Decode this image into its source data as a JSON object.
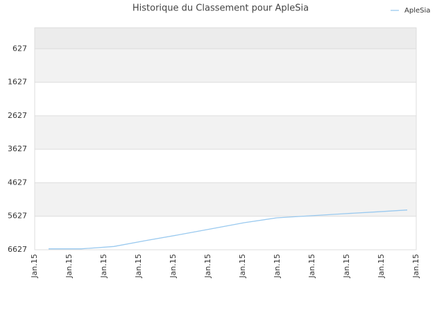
{
  "chart_data": {
    "type": "line",
    "title": "Historique du Classement pour ApleSia",
    "categories": [
      "Jan.15",
      "Jan.15",
      "Jan.15",
      "Jan.15",
      "Jan.15",
      "Jan.15",
      "Jan.15",
      "Jan.15",
      "Jan.15",
      "Jan.15",
      "Jan.15",
      "Jan.15"
    ],
    "series": [
      {
        "name": "ApleSia",
        "color": "#99c9ef",
        "values": [
          6600,
          6600,
          6530,
          6350,
          6180,
          6000,
          5820,
          5675,
          5615,
          5555,
          5500,
          5440
        ]
      }
    ],
    "ylim": [
      6627,
      0
    ],
    "yticks": [
      627,
      1627,
      2627,
      3627,
      4627,
      5627,
      6627
    ],
    "legend": "top-right"
  }
}
